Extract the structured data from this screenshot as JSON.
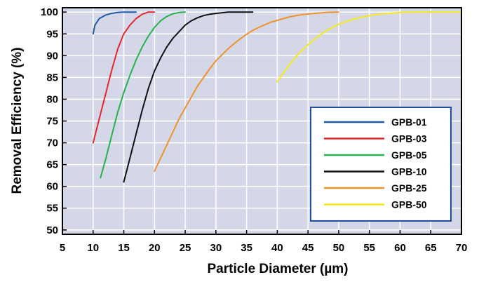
{
  "chart_data": {
    "type": "line",
    "xlabel": "Particle Diameter (µm)",
    "ylabel": "Removal Efficiency (%)",
    "xlim": [
      5,
      70
    ],
    "ylim": [
      49,
      101
    ],
    "xticks": [
      5,
      10,
      15,
      20,
      25,
      30,
      35,
      40,
      45,
      50,
      55,
      60,
      65,
      70
    ],
    "yticks": [
      50,
      55,
      60,
      65,
      70,
      75,
      80,
      85,
      90,
      95,
      100
    ],
    "grid": true,
    "legend_position": "bottom-right",
    "plot_background": "#d4d7e8",
    "legend_border_color": "#1f4fa0",
    "series": [
      {
        "name": "GPB-01",
        "color": "#1f5ba8",
        "x": [
          10,
          10.3,
          11,
          12,
          13,
          14,
          15,
          16,
          17
        ],
        "y": [
          95,
          97,
          98.5,
          99.3,
          99.7,
          99.9,
          100,
          100,
          100
        ]
      },
      {
        "name": "GPB-03",
        "color": "#e8262a",
        "x": [
          10,
          11,
          12,
          13,
          14,
          15,
          16,
          17,
          18,
          19,
          20
        ],
        "y": [
          70,
          75.5,
          81,
          86.5,
          91.5,
          95,
          97,
          98.5,
          99.5,
          100,
          100
        ]
      },
      {
        "name": "GPB-05",
        "color": "#26b24c",
        "x": [
          11.2,
          12,
          13,
          14,
          15,
          16,
          17,
          18,
          19,
          20,
          21,
          22,
          23,
          24,
          25
        ],
        "y": [
          62,
          66,
          71.5,
          77,
          81.5,
          85.5,
          89,
          92,
          94.5,
          96.5,
          98,
          99,
          99.6,
          99.9,
          100
        ]
      },
      {
        "name": "GPB-10",
        "color": "#111111",
        "x": [
          15,
          16,
          17,
          18,
          19,
          20,
          21,
          22,
          23,
          24,
          25,
          26,
          27,
          28,
          29,
          30,
          32,
          34,
          35,
          36
        ],
        "y": [
          61,
          66.5,
          72,
          77.5,
          82.5,
          86.5,
          89.5,
          92,
          94,
          95.5,
          97,
          98,
          98.7,
          99.2,
          99.5,
          99.7,
          100,
          100,
          100,
          100
        ]
      },
      {
        "name": "GPB-25",
        "color": "#f0922c",
        "x": [
          20,
          21,
          22,
          23,
          24,
          25,
          26,
          27,
          28,
          29,
          30,
          31,
          32,
          33,
          34,
          35,
          36,
          37,
          38,
          39,
          40,
          42,
          44,
          46,
          48,
          50
        ],
        "y": [
          63.5,
          66.5,
          69.5,
          72.5,
          75.5,
          78,
          80.5,
          83,
          85,
          87,
          88.8,
          90.2,
          91.6,
          92.8,
          93.9,
          94.9,
          95.8,
          96.5,
          97.1,
          97.7,
          98.1,
          98.9,
          99.4,
          99.7,
          99.9,
          100
        ]
      },
      {
        "name": "GPB-50",
        "color": "#f4ea1e",
        "x": [
          40,
          41,
          42,
          43,
          44,
          45,
          46,
          47,
          48,
          49,
          50,
          52,
          54,
          56,
          58,
          60,
          62,
          65,
          70
        ],
        "y": [
          84,
          86,
          88,
          89.7,
          91.2,
          92.5,
          93.7,
          94.8,
          95.7,
          96.5,
          97.2,
          98.2,
          98.9,
          99.4,
          99.7,
          99.9,
          100,
          100,
          100
        ]
      }
    ]
  }
}
